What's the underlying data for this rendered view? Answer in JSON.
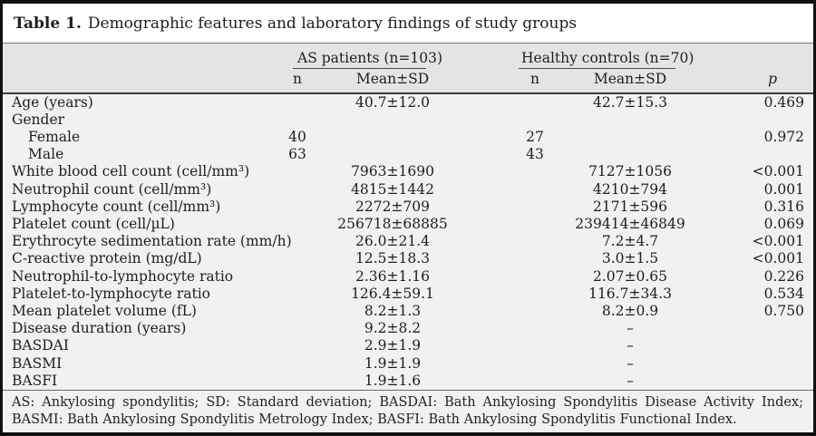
{
  "title": {
    "label": "Table 1.",
    "text": "Demographic features and laboratory findings of study groups"
  },
  "header": {
    "group_as": "AS patients (n=103)",
    "group_hc": "Healthy controls (n=70)",
    "n_label": "n",
    "mean_sd_label": "Mean±SD",
    "p_label": "p"
  },
  "rows": [
    {
      "label": "Age (years)",
      "indent": false,
      "as_n": "",
      "as_mean": "40.7±12.0",
      "hc_n": "",
      "hc_mean": "42.7±15.3",
      "p": "0.469"
    },
    {
      "label": "Gender",
      "indent": false,
      "as_n": "",
      "as_mean": "",
      "hc_n": "",
      "hc_mean": "",
      "p": ""
    },
    {
      "label": "Female",
      "indent": true,
      "as_n": "40",
      "as_mean": "",
      "hc_n": "27",
      "hc_mean": "",
      "p": "0.972"
    },
    {
      "label": "Male",
      "indent": true,
      "as_n": "63",
      "as_mean": "",
      "hc_n": "43",
      "hc_mean": "",
      "p": ""
    },
    {
      "label": "White blood cell count (cell/mm³)",
      "indent": false,
      "as_n": "",
      "as_mean": "7963±1690",
      "hc_n": "",
      "hc_mean": "7127±1056",
      "p": "<0.001"
    },
    {
      "label": "Neutrophil count (cell/mm³)",
      "indent": false,
      "as_n": "",
      "as_mean": "4815±1442",
      "hc_n": "",
      "hc_mean": "4210±794",
      "p": "0.001"
    },
    {
      "label": "Lymphocyte count (cell/mm³)",
      "indent": false,
      "as_n": "",
      "as_mean": "2272±709",
      "hc_n": "",
      "hc_mean": "2171±596",
      "p": "0.316"
    },
    {
      "label": "Platelet count (cell/µL)",
      "indent": false,
      "as_n": "",
      "as_mean": "256718±68885",
      "hc_n": "",
      "hc_mean": "239414±46849",
      "p": "0.069"
    },
    {
      "label": "Erythrocyte sedimentation rate (mm/h)",
      "indent": false,
      "as_n": "",
      "as_mean": "26.0±21.4",
      "hc_n": "",
      "hc_mean": "7.2±4.7",
      "p": "<0.001"
    },
    {
      "label": "C-reactive protein (mg/dL)",
      "indent": false,
      "as_n": "",
      "as_mean": "12.5±18.3",
      "hc_n": "",
      "hc_mean": "3.0±1.5",
      "p": "<0.001"
    },
    {
      "label": "Neutrophil-to-lymphocyte ratio",
      "indent": false,
      "as_n": "",
      "as_mean": "2.36±1.16",
      "hc_n": "",
      "hc_mean": "2.07±0.65",
      "p": "0.226"
    },
    {
      "label": "Platelet-to-lymphocyte ratio",
      "indent": false,
      "as_n": "",
      "as_mean": "126.4±59.1",
      "hc_n": "",
      "hc_mean": "116.7±34.3",
      "p": "0.534"
    },
    {
      "label": "Mean platelet volume (fL)",
      "indent": false,
      "as_n": "",
      "as_mean": "8.2±1.3",
      "hc_n": "",
      "hc_mean": "8.2±0.9",
      "p": "0.750"
    },
    {
      "label": "Disease duration (years)",
      "indent": false,
      "as_n": "",
      "as_mean": "9.2±8.2",
      "hc_n": "",
      "hc_mean": "–",
      "p": ""
    },
    {
      "label": "BASDAI",
      "indent": false,
      "as_n": "",
      "as_mean": "2.9±1.9",
      "hc_n": "",
      "hc_mean": "–",
      "p": ""
    },
    {
      "label": "BASMI",
      "indent": false,
      "as_n": "",
      "as_mean": "1.9±1.9",
      "hc_n": "",
      "hc_mean": "–",
      "p": ""
    },
    {
      "label": "BASFI",
      "indent": false,
      "as_n": "",
      "as_mean": "1.9±1.6",
      "hc_n": "",
      "hc_mean": "–",
      "p": ""
    }
  ],
  "footnote": "AS: Ankylosing spondylitis; SD: Standard deviation; BASDAI: Bath Ankylosing Spondylitis Disease Activity Index; BASMI: Bath Ankylosing Spondylitis Metrology Index; BASFI: Bath Ankylosing Spondylitis Functional Index.",
  "colors": {
    "frame_border": "#101010",
    "title_bg": "#ffffff",
    "header_band": "#e3e4e5",
    "body_band": "#f0f1f1",
    "rule_dark": "#3e3e3e",
    "rule_light": "#7c7c7c",
    "text": "#1e1e1e"
  }
}
